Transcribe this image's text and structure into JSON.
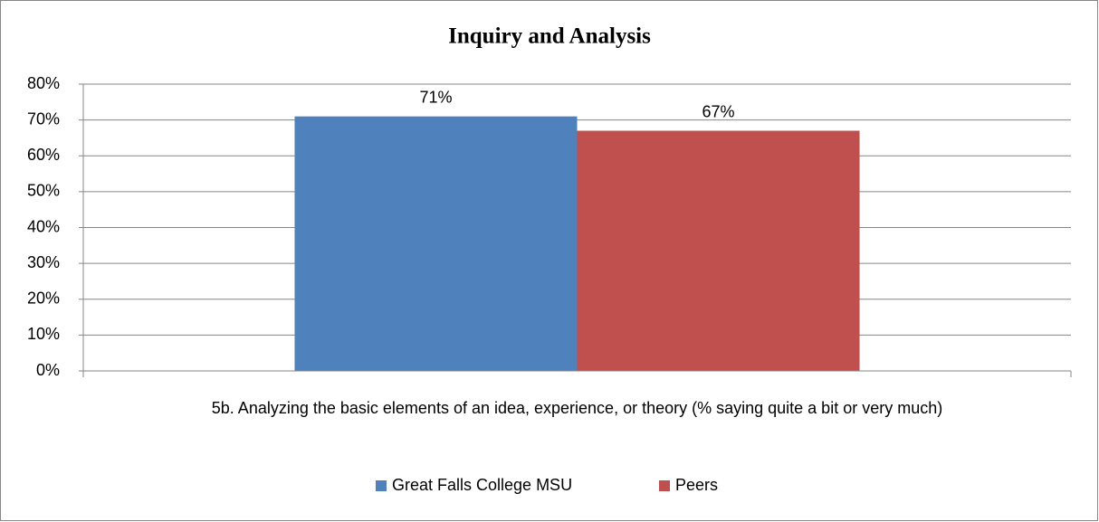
{
  "chart_data": {
    "type": "bar",
    "title": "Inquiry and Analysis",
    "categories": [
      "5b.  Analyzing the basic elements of an idea, experience, or theory (% saying quite a bit or very much)"
    ],
    "series": [
      {
        "name": "Great Falls College MSU",
        "color": "#4f81bd",
        "values": [
          71
        ],
        "value_labels": [
          "71%"
        ]
      },
      {
        "name": "Peers",
        "color": "#c0504d",
        "values": [
          67
        ],
        "value_labels": [
          "67%"
        ]
      }
    ],
    "ylim": [
      0,
      80
    ],
    "yticks": [
      {
        "value": 0,
        "label": "0%"
      },
      {
        "value": 10,
        "label": "10%"
      },
      {
        "value": 20,
        "label": "20%"
      },
      {
        "value": 30,
        "label": "30%"
      },
      {
        "value": 40,
        "label": "40%"
      },
      {
        "value": 50,
        "label": "50%"
      },
      {
        "value": 60,
        "label": "60%"
      },
      {
        "value": 70,
        "label": "70%"
      },
      {
        "value": 80,
        "label": "80%"
      }
    ],
    "grid": true,
    "legend": "bottom"
  }
}
